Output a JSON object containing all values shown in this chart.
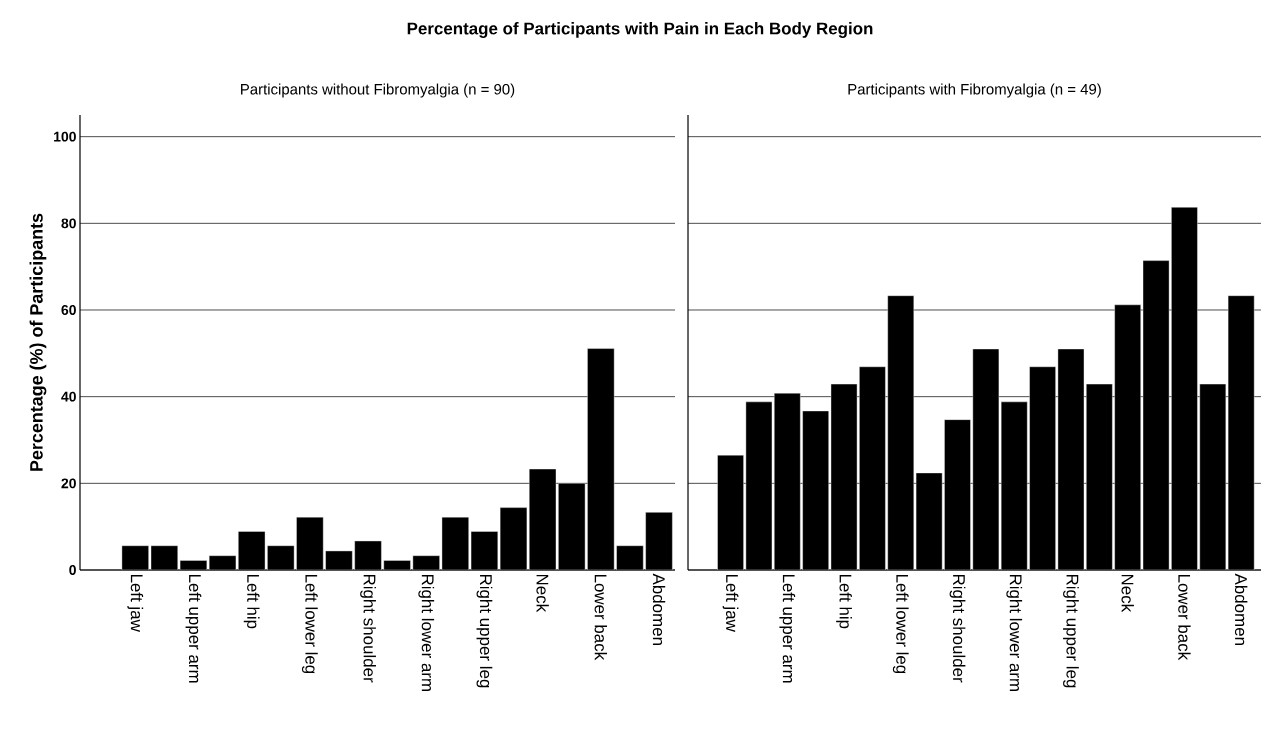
{
  "chart_data": [
    {
      "type": "bar",
      "title": "Percentage of Participants with Pain in Each Body Region",
      "subtitle": "Participants without Fibromyalgia (n = 90)",
      "ylabel": "Percentage (%) of Participants",
      "categories": [
        "Left jaw",
        null,
        "Left upper arm",
        null,
        "Left hip",
        null,
        "Left lower leg",
        null,
        "Right shoulder",
        null,
        "Right lower arm",
        null,
        "Right upper leg",
        null,
        "Neck",
        null,
        "Lower back",
        null,
        "Abdomen"
      ],
      "values": [
        5.6,
        5.6,
        2.2,
        3.3,
        8.9,
        5.6,
        12.2,
        4.4,
        6.7,
        2.2,
        3.3,
        12.2,
        8.9,
        14.4,
        23.3,
        20.0,
        51.1,
        5.6,
        13.3
      ],
      "color": "#000000",
      "ylim": [
        0,
        105
      ],
      "yticks": [
        0,
        20,
        40,
        60,
        80,
        100
      ],
      "grid": "y"
    },
    {
      "type": "bar",
      "subtitle": "Participants with Fibromyalgia (n = 49)",
      "categories": [
        "Left jaw",
        null,
        "Left upper arm",
        null,
        "Left hip",
        null,
        "Left lower leg",
        null,
        "Right shoulder",
        null,
        "Right lower arm",
        null,
        "Right upper leg",
        null,
        "Neck",
        null,
        "Lower back",
        null,
        "Abdomen"
      ],
      "values": [
        26.5,
        38.8,
        40.8,
        36.7,
        42.9,
        46.9,
        63.3,
        22.4,
        34.7,
        51.0,
        38.8,
        46.9,
        51.0,
        42.9,
        61.2,
        71.4,
        83.7,
        42.9,
        63.3
      ],
      "color": "#000000",
      "ylim": [
        0,
        105
      ],
      "yticks": [
        0,
        20,
        40,
        60,
        80,
        100
      ],
      "grid": "y",
      "tick_labels": "x"
    }
  ]
}
